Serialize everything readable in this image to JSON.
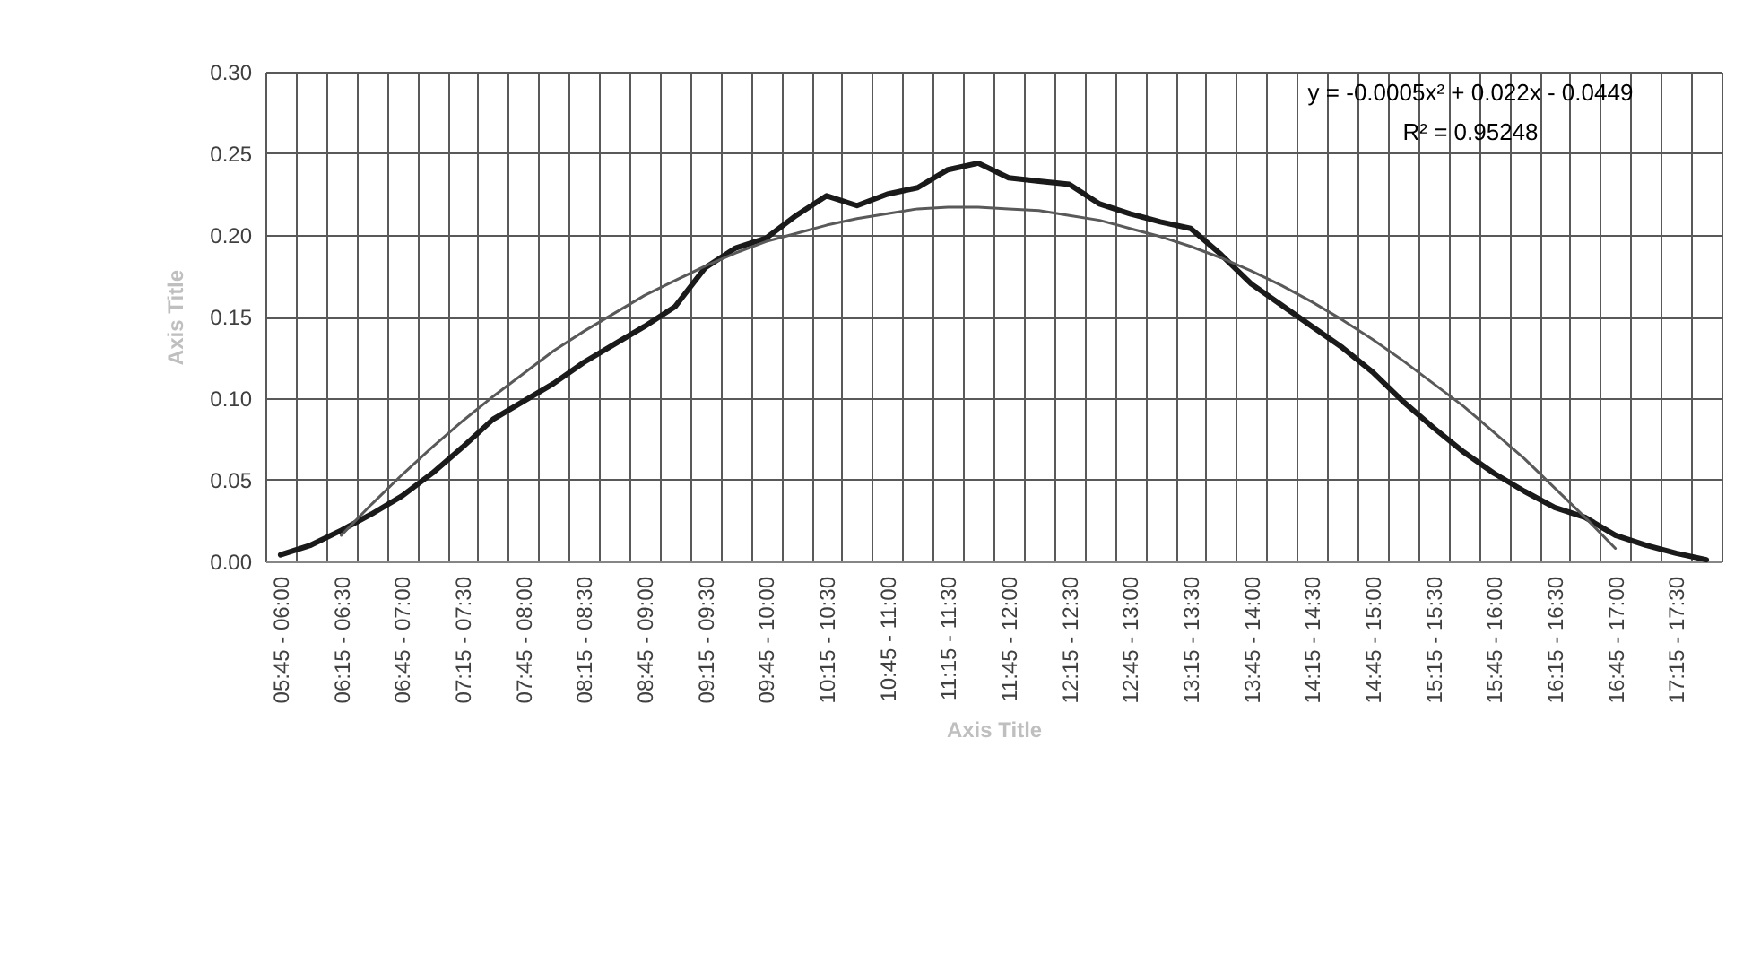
{
  "chart_data": {
    "type": "line",
    "xlabel": "Axis Title",
    "ylabel": "Axis Title",
    "categories": [
      "05:45 - 06:00",
      null,
      "06:15 - 06:30",
      null,
      "06:45 - 07:00",
      null,
      "07:15 - 07:30",
      null,
      "07:45 - 08:00",
      null,
      "08:15 - 08:30",
      null,
      "08:45 - 09:00",
      null,
      "09:15 - 09:30",
      null,
      "09:45 - 10:00",
      null,
      "10:15 - 10:30",
      null,
      "10:45 - 11:00",
      null,
      "11:15 - 11:30",
      null,
      "11:45 - 12:00",
      null,
      "12:15 - 12:30",
      null,
      "12:45 - 13:00",
      null,
      "13:15 - 13:30",
      null,
      "13:45 - 14:00",
      null,
      "14:15 - 14:30",
      null,
      "14:45 - 15:00",
      null,
      "15:15 - 15:30",
      null,
      "15:45 - 16:00",
      null,
      "16:15 - 16:30",
      null,
      "16:45 - 17:00",
      null,
      "17:15 - 17:30",
      null
    ],
    "series": [
      {
        "color": "#1a1a1a",
        "values": [
          0.004,
          0.01,
          0.019,
          0.029,
          0.04,
          0.054,
          0.07,
          0.087,
          0.098,
          0.109,
          0.122,
          0.133,
          0.144,
          0.156,
          0.18,
          0.192,
          0.198,
          0.212,
          0.224,
          0.218,
          0.225,
          0.229,
          0.24,
          0.244,
          0.235,
          0.233,
          0.231,
          0.219,
          0.213,
          0.208,
          0.204,
          0.188,
          0.17,
          0.157,
          0.144,
          0.131,
          0.116,
          0.098,
          0.082,
          0.067,
          0.054,
          0.043,
          0.033,
          0.027,
          0.016,
          0.01,
          0.005,
          0.001
        ]
      },
      {
        "type": "line",
        "color": "#595959",
        "values": [
          null,
          null,
          0.016,
          0.035,
          0.053,
          0.07,
          0.086,
          0.101,
          0.115,
          0.129,
          0.141,
          0.152,
          0.163,
          0.172,
          0.181,
          0.189,
          0.196,
          0.201,
          0.206,
          0.21,
          0.213,
          0.216,
          0.217,
          0.217,
          0.216,
          0.215,
          0.212,
          0.209,
          0.204,
          0.199,
          0.193,
          0.186,
          0.178,
          0.169,
          0.159,
          0.148,
          0.136,
          0.123,
          0.109,
          0.095,
          0.079,
          0.063,
          0.045,
          0.027,
          0.008,
          null,
          null,
          null
        ]
      }
    ],
    "ylim": [
      0,
      0.3
    ],
    "yticks": [
      {
        "value": 0,
        "label": "0.00"
      },
      {
        "value": 0.05,
        "label": "0.05"
      },
      {
        "value": 0.1,
        "label": "0.10"
      },
      {
        "value": 0.15,
        "label": "0.15"
      },
      {
        "value": 0.2,
        "label": "0.20"
      },
      {
        "value": 0.25,
        "label": "0.25"
      },
      {
        "value": 0.3,
        "label": "0.30"
      }
    ],
    "grid": true,
    "marker": "none",
    "line_style": "solid",
    "annotations": [
      "y = -0.0005x² + 0.022x - 0.0449",
      "R² = 0.95248"
    ]
  }
}
